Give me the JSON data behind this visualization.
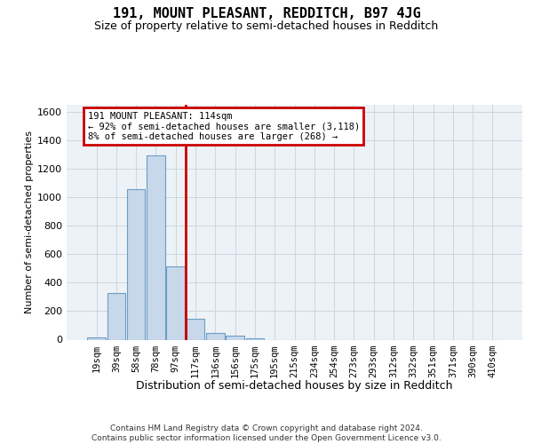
{
  "title": "191, MOUNT PLEASANT, REDDITCH, B97 4JG",
  "subtitle": "Size of property relative to semi-detached houses in Redditch",
  "xlabel": "Distribution of semi-detached houses by size in Redditch",
  "ylabel": "Number of semi-detached properties",
  "footer_line1": "Contains HM Land Registry data © Crown copyright and database right 2024.",
  "footer_line2": "Contains public sector information licensed under the Open Government Licence v3.0.",
  "annotation_line1": "191 MOUNT PLEASANT: 114sqm",
  "annotation_line2": "← 92% of semi-detached houses are smaller (3,118)",
  "annotation_line3": "8% of semi-detached houses are larger (268) →",
  "bar_labels": [
    "19sqm",
    "39sqm",
    "58sqm",
    "78sqm",
    "97sqm",
    "117sqm",
    "136sqm",
    "156sqm",
    "175sqm",
    "195sqm",
    "215sqm",
    "234sqm",
    "254sqm",
    "273sqm",
    "293sqm",
    "312sqm",
    "332sqm",
    "351sqm",
    "371sqm",
    "390sqm",
    "410sqm"
  ],
  "bar_values": [
    18,
    330,
    1055,
    1290,
    515,
    148,
    45,
    25,
    12,
    0,
    0,
    0,
    0,
    0,
    0,
    0,
    0,
    0,
    0,
    0,
    0
  ],
  "bar_color": "#c8d8eb",
  "bar_edge_color": "#6b9ec4",
  "vline_color": "#cc0000",
  "grid_color": "#ccd6e0",
  "bg_color": "#edf2f7",
  "ylim_max": 1650,
  "yticks": [
    0,
    200,
    400,
    600,
    800,
    1000,
    1200,
    1400,
    1600
  ],
  "vline_pos": 4.5,
  "title_fontsize": 11,
  "subtitle_fontsize": 9,
  "ylabel_fontsize": 8,
  "xlabel_fontsize": 9,
  "tick_fontsize": 7.5,
  "footer_fontsize": 6.5,
  "ann_fontsize": 7.5
}
